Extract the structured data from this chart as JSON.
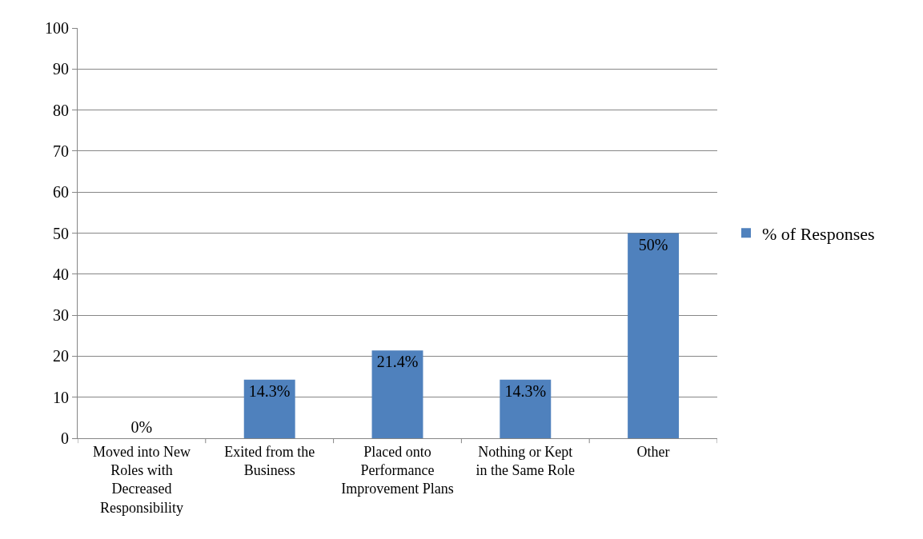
{
  "chart_data": {
    "type": "bar",
    "categories": [
      "Moved into New Roles with Decreased Responsibility",
      "Exited from the Business",
      "Placed onto Performance Improvement Plans",
      "Nothing or Kept in the Same Role",
      "Other"
    ],
    "series": [
      {
        "name": "% of Responses",
        "color": "#4f81bd",
        "values": [
          0,
          14.3,
          21.4,
          14.3,
          50
        ],
        "value_labels": [
          "0%",
          "14.3%",
          "21.4%",
          "14.3%",
          "50%"
        ]
      }
    ],
    "ylim": [
      0,
      100
    ],
    "yticks": [
      0,
      10,
      20,
      30,
      40,
      50,
      60,
      70,
      80,
      90,
      100
    ],
    "grid": "y",
    "legend": "right"
  }
}
